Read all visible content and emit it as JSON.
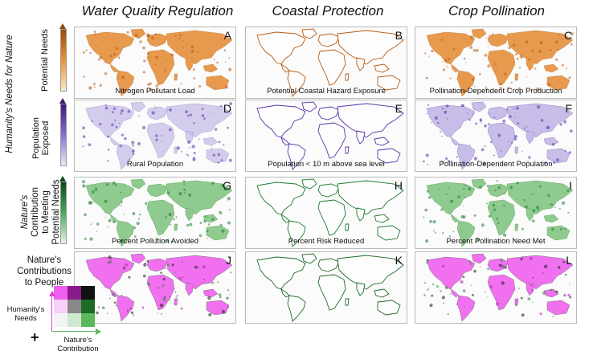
{
  "columns": [
    {
      "title": "Water Quality Regulation"
    },
    {
      "title": "Coastal Protection"
    },
    {
      "title": "Crop Pollination"
    }
  ],
  "group_labels": {
    "needs": "Humanity's Needs for Nature",
    "contribution_line1": "Nature's",
    "contribution_line2": "Contribution",
    "contribution_line3": "to Meeting",
    "contribution_line4": "Potential Needs"
  },
  "row_labels": {
    "potential_needs": "Potential Needs",
    "population_line1": "Population",
    "population_line2": "Exposed"
  },
  "panels": [
    {
      "letter": "A",
      "caption": "Nitrogen Pollutant Load"
    },
    {
      "letter": "B",
      "caption": "Potential Coastal Hazard Exposure"
    },
    {
      "letter": "C",
      "caption": "Pollination-Dependent Crop Production"
    },
    {
      "letter": "D",
      "caption": "Rural Population"
    },
    {
      "letter": "E",
      "caption": "Population < 10 m above sea level"
    },
    {
      "letter": "F",
      "caption": "Pollination-Dependent Population"
    },
    {
      "letter": "G",
      "caption": "Percent Pollution Avoided"
    },
    {
      "letter": "H",
      "caption": "Percent Risk Reduced"
    },
    {
      "letter": "I",
      "caption": "Percent Pollination Need Met"
    },
    {
      "letter": "J",
      "caption": ""
    },
    {
      "letter": "K",
      "caption": ""
    },
    {
      "letter": "L",
      "caption": ""
    }
  ],
  "legend": {
    "title_line1": "Nature's",
    "title_line2": "Contributions",
    "title_line3": "to People",
    "y_label_line1": "Humanity's",
    "y_label_line2": "Needs",
    "x_label_line1": "Nature's",
    "x_label_line2": "Contribution",
    "plus": "+"
  },
  "colors": {
    "orange": "#d9781c",
    "purple": "#6a3fb0",
    "green": "#1f7a2f",
    "magenta": "#e040e0",
    "land_outline": "#777777",
    "bivariate": [
      [
        "#f060f0",
        "#8a1a8a",
        "#111111"
      ],
      [
        "#f7d0f7",
        "#888888",
        "#1d6b25"
      ],
      [
        "#f4f4f4",
        "#cfe8cf",
        "#5cb85c"
      ]
    ]
  }
}
